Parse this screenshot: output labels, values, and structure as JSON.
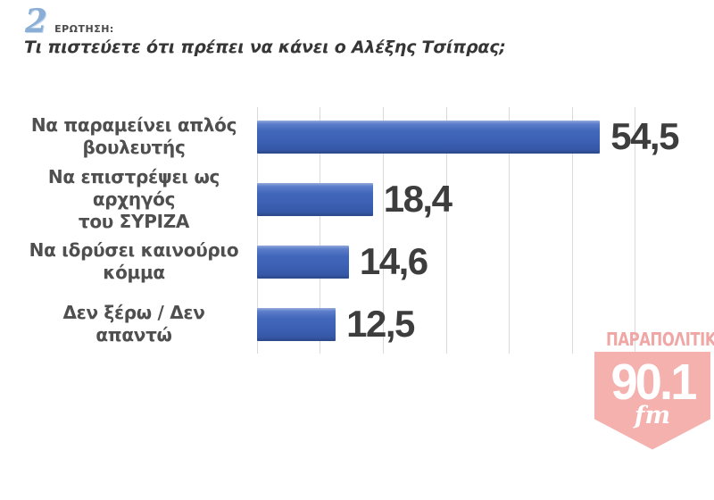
{
  "header": {
    "question_number": "2",
    "question_label": "ΕΡΩΤΗΣΗ:"
  },
  "question": "Τι πιστεύετε ότι πρέπει να κάνει ο Αλέξης Τσίπρας;",
  "chart_data": {
    "type": "bar",
    "orientation": "horizontal",
    "title": "Τι πιστεύετε ότι πρέπει να κάνει ο Αλέξης Τσίπρας;",
    "categories": [
      "Να παραμείνει απλός βουλευτής",
      "Να επιστρέψει ως αρχηγός του ΣΥΡΙΖΑ",
      "Να ιδρύσει καινούριο κόμμα",
      "Δεν ξέρω / Δεν απαντώ"
    ],
    "label_lines": [
      [
        "Να παραμείνει απλός",
        "βουλευτής"
      ],
      [
        "Να επιστρέψει ως αρχηγός",
        "του ΣΥΡΙΖΑ"
      ],
      [
        "Να ιδρύσει καινούριο",
        "κόμμα"
      ],
      [
        "Δεν ξέρω / Δεν απαντώ"
      ]
    ],
    "values": [
      54.5,
      18.4,
      14.6,
      12.5
    ],
    "value_labels": [
      "54,5",
      "18,4",
      "14,6",
      "12,5"
    ],
    "xlim": [
      0,
      60
    ],
    "gridline_interval": 10,
    "grid": true,
    "legend": false,
    "xlabel": "",
    "ylabel": ""
  },
  "logo": {
    "station_name": "ΠΑΡΑΠΟΛΙΤΙΚΑ",
    "frequency": "90.1",
    "band": "fm"
  },
  "colors": {
    "bar_main": "#3c60b4",
    "bar_highlight": "#93aadc",
    "bar_shadow": "#2b4787",
    "grid": "#d9d9d9",
    "accent_number": "#8aaed6",
    "text": "#3d3d3d",
    "logo_pink": "#f4b1ae"
  }
}
